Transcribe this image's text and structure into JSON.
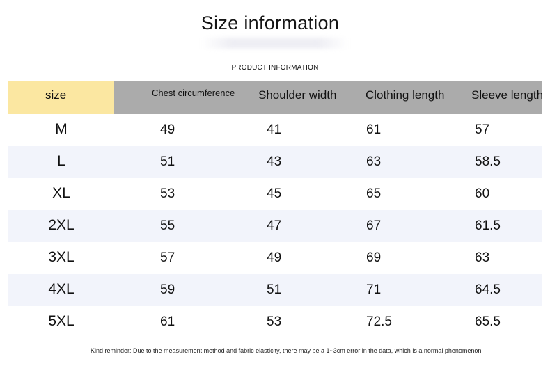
{
  "title": "Size information",
  "subtitle": "PRODUCT INFORMATION",
  "table": {
    "headers": [
      "size",
      "Chest circumference",
      "Shoulder width",
      "Clothing length",
      "Sleeve length"
    ],
    "rows": [
      {
        "size": "M",
        "chest": "49",
        "shoulder": "41",
        "length": "61",
        "sleeve": "57"
      },
      {
        "size": "L",
        "chest": "51",
        "shoulder": "43",
        "length": "63",
        "sleeve": "58.5"
      },
      {
        "size": "XL",
        "chest": "53",
        "shoulder": "45",
        "length": "65",
        "sleeve": "60"
      },
      {
        "size": "2XL",
        "chest": "55",
        "shoulder": "47",
        "length": "67",
        "sleeve": "61.5"
      },
      {
        "size": "3XL",
        "chest": "57",
        "shoulder": "49",
        "length": "69",
        "sleeve": "63"
      },
      {
        "size": "4XL",
        "chest": "59",
        "shoulder": "51",
        "length": "71",
        "sleeve": "64.5"
      },
      {
        "size": "5XL",
        "chest": "61",
        "shoulder": "53",
        "length": "72.5",
        "sleeve": "65.5"
      }
    ]
  },
  "note": "Kind reminder: Due to the measurement method and fabric elasticity, there may be a 1~3cm error in the data, which is a normal phenomenon",
  "colors": {
    "header_bg": "#ababab",
    "size_header_bg": "#fbe7a1",
    "row_shade": "#f2f4fb"
  }
}
